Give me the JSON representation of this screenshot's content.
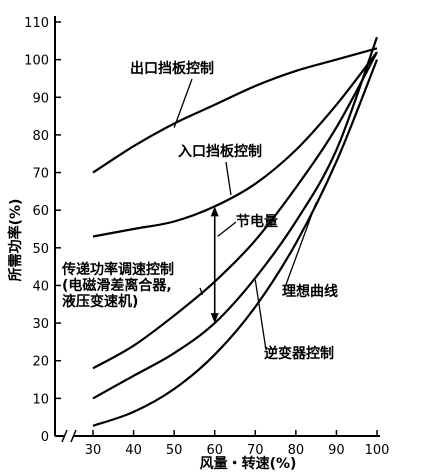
{
  "chart_data": {
    "type": "line",
    "xlabel": "风量・转速(%)",
    "ylabel": "所需功率(%)",
    "xlim": [
      25,
      100
    ],
    "ylim": [
      0,
      110
    ],
    "xticks": [
      30,
      40,
      50,
      60,
      70,
      80,
      90,
      100
    ],
    "yticks": [
      0,
      10,
      20,
      30,
      40,
      50,
      60,
      70,
      80,
      90,
      100,
      110
    ],
    "axis_break": "x",
    "grid": false,
    "series": [
      {
        "name": "出口挡板控制",
        "x": [
          30,
          40,
          50,
          60,
          70,
          80,
          90,
          100
        ],
        "y": [
          70,
          77,
          83,
          88,
          93,
          97,
          100,
          103
        ]
      },
      {
        "name": "入口挡板控制",
        "x": [
          30,
          40,
          50,
          60,
          70,
          80,
          90,
          100
        ],
        "y": [
          53,
          55,
          57,
          61,
          67,
          76,
          88,
          102
        ]
      },
      {
        "name": "传递功率调速控制(电磁滑差离合器,液压变速机)",
        "x": [
          30,
          40,
          50,
          60,
          70,
          80,
          90,
          100
        ],
        "y": [
          18,
          24,
          32,
          41,
          52,
          66,
          82,
          102
        ]
      },
      {
        "name": "逆变器控制",
        "x": [
          30,
          40,
          50,
          60,
          70,
          80,
          90,
          100
        ],
        "y": [
          10,
          16,
          22,
          30,
          42,
          57,
          76,
          106
        ]
      },
      {
        "name": "理想曲线",
        "x": [
          30,
          40,
          50,
          60,
          70,
          80,
          90,
          100
        ],
        "y": [
          2.7,
          6.4,
          12.5,
          21.6,
          34.3,
          51.2,
          72.9,
          100
        ]
      }
    ],
    "annotations": [
      {
        "text": "节电量",
        "x": 60,
        "from_y": 30,
        "to_y": 61
      }
    ]
  }
}
